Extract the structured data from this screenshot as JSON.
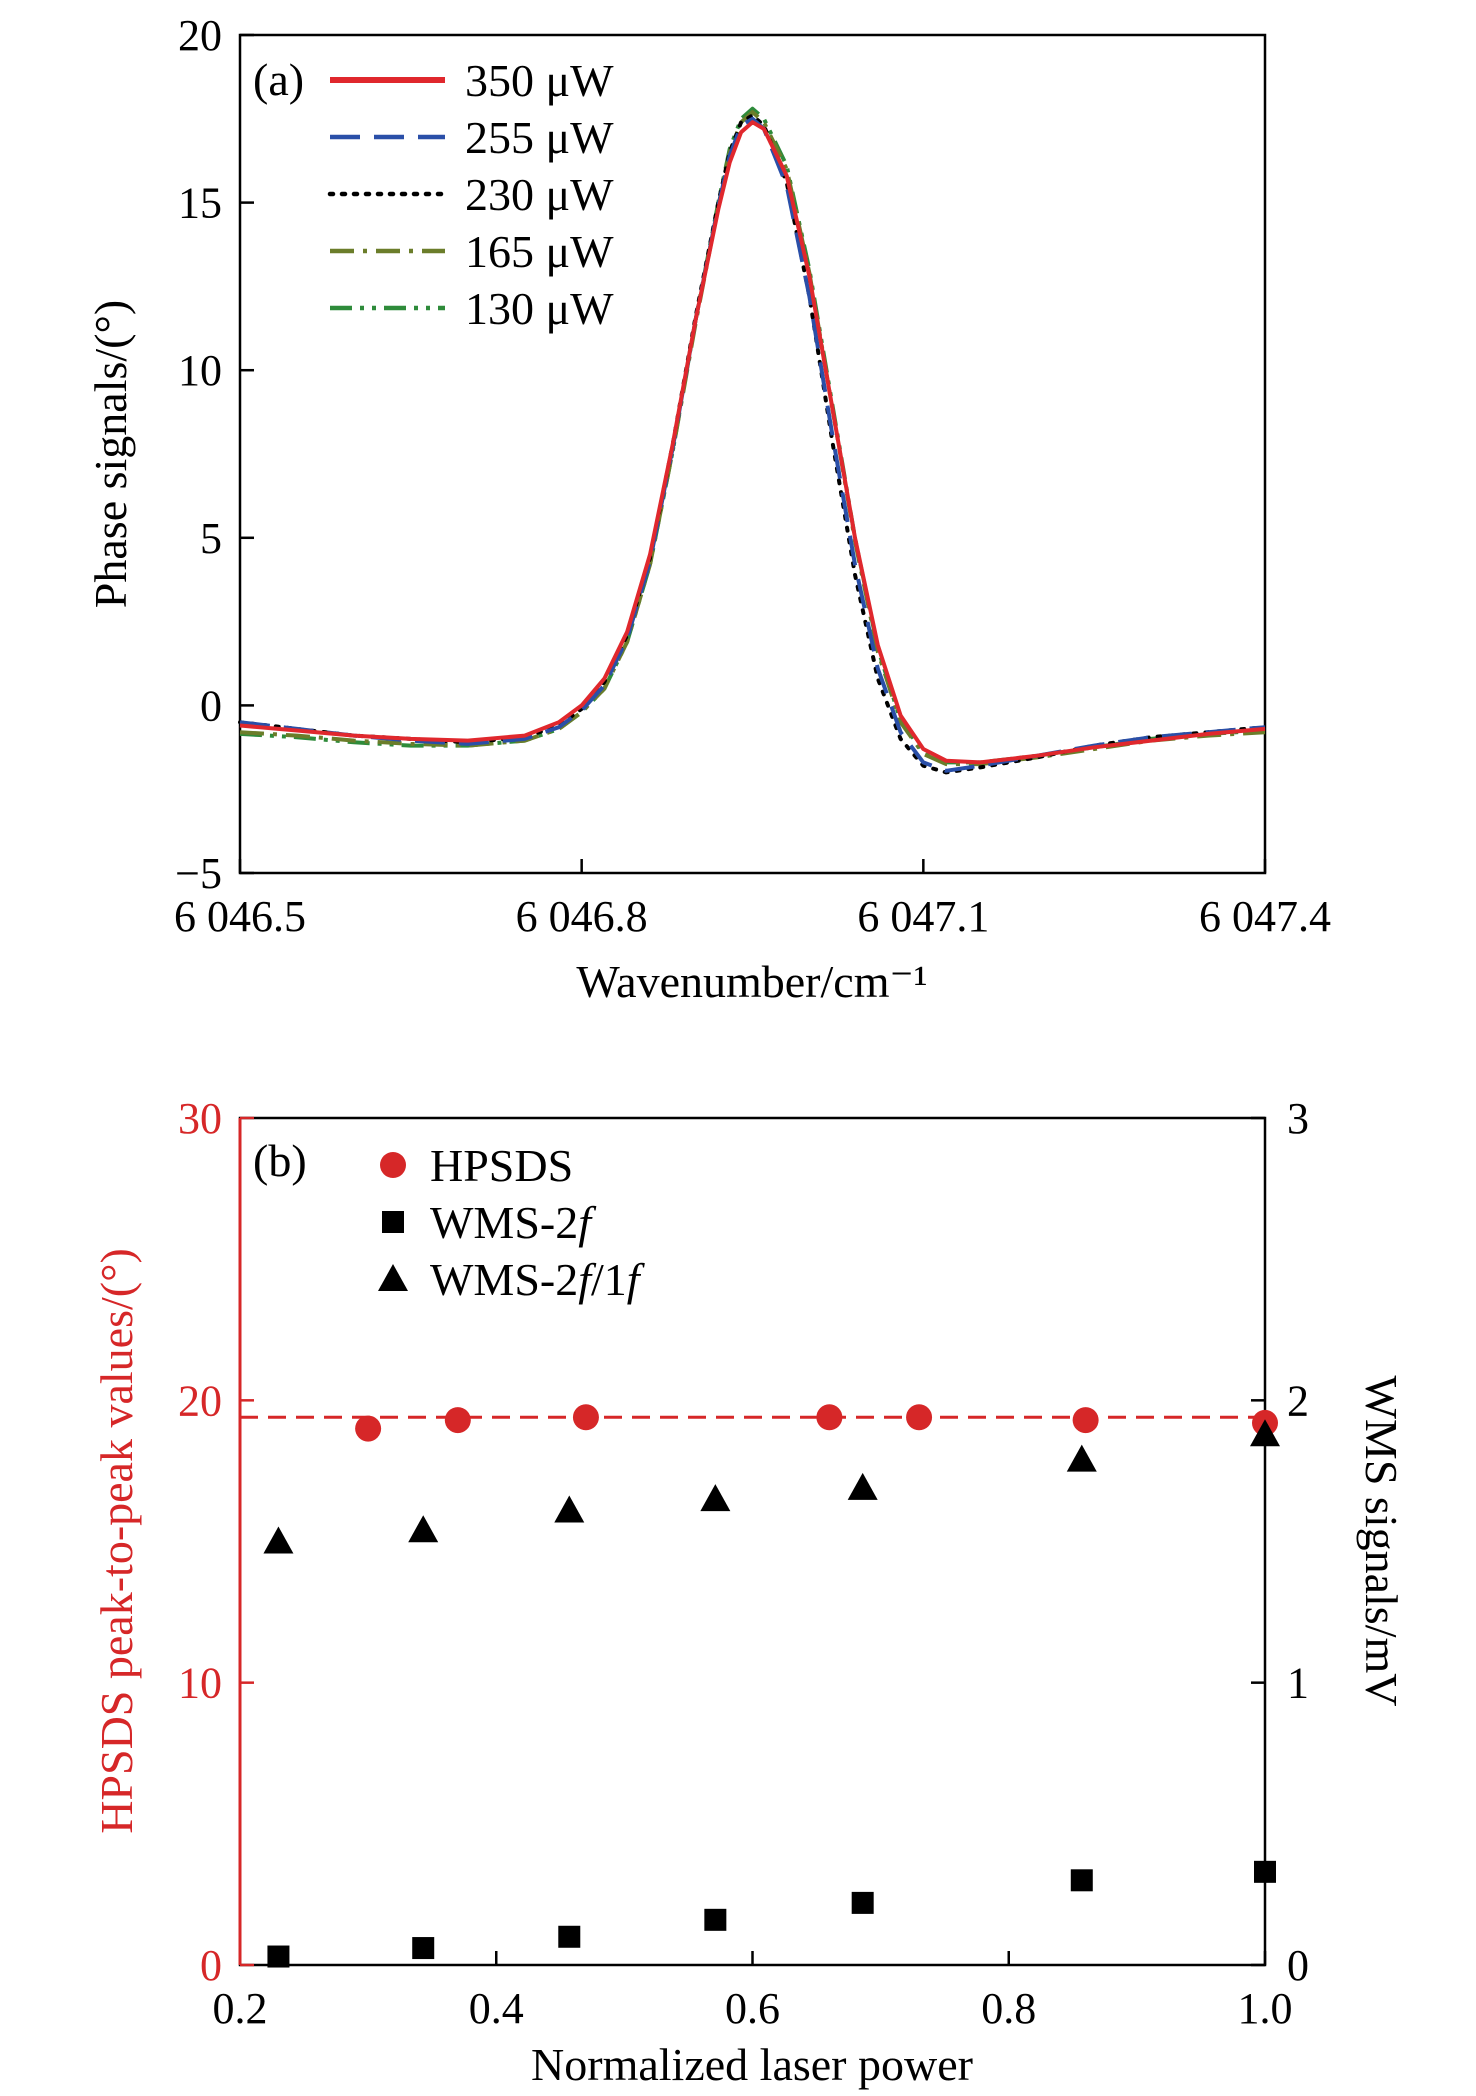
{
  "chart_data": [
    {
      "type": "line",
      "panel_label": "(a)",
      "xlabel": "Wavenumber/cm⁻¹",
      "ylabel": "Phase signals/(°)",
      "xlim": [
        6046.5,
        6047.4
      ],
      "ylim": [
        -5,
        20
      ],
      "x_ticks": [
        6046.5,
        6046.8,
        6047.1,
        6047.4
      ],
      "x_tick_labels": [
        "6 046.5",
        "6 046.8",
        "6 047.1",
        "6 047.4"
      ],
      "y_ticks": [
        -5,
        0,
        5,
        10,
        15,
        20
      ],
      "y_tick_labels": [
        "−5",
        "0",
        "5",
        "10",
        "15",
        "20"
      ],
      "legend_position": "top-left",
      "x": [
        6046.5,
        6046.55,
        6046.6,
        6046.65,
        6046.7,
        6046.75,
        6046.78,
        6046.8,
        6046.82,
        6046.84,
        6046.86,
        6046.88,
        6046.9,
        6046.92,
        6046.93,
        6046.94,
        6046.95,
        6046.96,
        6046.98,
        6047.0,
        6047.02,
        6047.04,
        6047.06,
        6047.08,
        6047.1,
        6047.12,
        6047.15,
        6047.2,
        6047.25,
        6047.3,
        6047.35,
        6047.4
      ],
      "series": [
        {
          "name": "350 μW",
          "color": "#e0282d",
          "dash": "solid",
          "y": [
            -0.6,
            -0.75,
            -0.9,
            -1.0,
            -1.05,
            -0.9,
            -0.5,
            0.0,
            0.8,
            2.2,
            4.5,
            7.8,
            11.5,
            14.8,
            16.2,
            17.1,
            17.4,
            17.2,
            15.8,
            12.8,
            8.9,
            5.0,
            1.8,
            -0.3,
            -1.3,
            -1.65,
            -1.7,
            -1.5,
            -1.25,
            -1.05,
            -0.85,
            -0.7
          ]
        },
        {
          "name": "255 μW",
          "color": "#2a4fa8",
          "dash": "long-dash",
          "y": [
            -0.5,
            -0.7,
            -0.9,
            -1.05,
            -1.15,
            -1.0,
            -0.65,
            -0.15,
            0.6,
            2.0,
            4.3,
            7.7,
            11.5,
            14.9,
            16.4,
            17.3,
            17.5,
            17.2,
            15.5,
            12.2,
            8.1,
            4.2,
            1.1,
            -0.8,
            -1.7,
            -1.95,
            -1.8,
            -1.5,
            -1.2,
            -0.95,
            -0.8,
            -0.65
          ]
        },
        {
          "name": "230 μW",
          "color": "#000000",
          "dash": "dotted",
          "y": [
            -0.5,
            -0.7,
            -0.9,
            -1.0,
            -1.1,
            -0.95,
            -0.6,
            -0.1,
            0.7,
            2.1,
            4.4,
            7.8,
            11.6,
            15.0,
            16.5,
            17.4,
            17.6,
            17.3,
            15.6,
            12.2,
            7.9,
            3.9,
            0.8,
            -1.0,
            -1.8,
            -2.0,
            -1.85,
            -1.55,
            -1.2,
            -0.95,
            -0.8,
            -0.65
          ]
        },
        {
          "name": "165 μW",
          "color": "#6b7d2a",
          "dash": "dash-dot",
          "y": [
            -0.8,
            -0.9,
            -1.05,
            -1.15,
            -1.2,
            -1.05,
            -0.7,
            -0.2,
            0.5,
            1.9,
            4.2,
            7.6,
            11.4,
            14.9,
            16.5,
            17.4,
            17.7,
            17.4,
            16.0,
            12.9,
            8.9,
            4.9,
            1.6,
            -0.5,
            -1.45,
            -1.75,
            -1.75,
            -1.55,
            -1.3,
            -1.05,
            -0.9,
            -0.8
          ]
        },
        {
          "name": "130 μW",
          "color": "#2e8b3a",
          "dash": "dash-dot-dot",
          "y": [
            -0.85,
            -0.95,
            -1.1,
            -1.2,
            -1.2,
            -1.05,
            -0.7,
            -0.2,
            0.5,
            1.9,
            4.2,
            7.6,
            11.5,
            15.0,
            16.6,
            17.5,
            17.8,
            17.5,
            16.1,
            13.0,
            9.0,
            5.0,
            1.7,
            -0.45,
            -1.4,
            -1.7,
            -1.7,
            -1.5,
            -1.25,
            -1.0,
            -0.85,
            -0.75
          ]
        }
      ]
    },
    {
      "type": "scatter",
      "panel_label": "(b)",
      "xlabel": "Normalized laser power",
      "ylabel_left": "HPSDS peak-to-peak values/(°)",
      "ylabel_right": "WMS signals/mV",
      "xlim": [
        0.2,
        1.0
      ],
      "ylim_left": [
        0,
        30
      ],
      "ylim_right": [
        0,
        3
      ],
      "x_ticks": [
        0.2,
        0.4,
        0.6,
        0.8,
        1.0
      ],
      "x_tick_labels": [
        "0.2",
        "0.4",
        "0.6",
        "0.8",
        "1.0"
      ],
      "y_left_ticks": [
        0,
        10,
        20,
        30
      ],
      "y_left_tick_labels": [
        "0",
        "10",
        "20",
        "30"
      ],
      "y_right_ticks": [
        0,
        1,
        2,
        3
      ],
      "y_right_tick_labels": [
        "0",
        "1",
        "2",
        "3"
      ],
      "legend_position": "top-left",
      "reference_line": {
        "axis": "left",
        "y": 19.4,
        "color": "#d62728",
        "style": "dashed"
      },
      "series": [
        {
          "name": "HPSDS",
          "marker": "circle",
          "color": "#d62728",
          "axis": "left",
          "x": [
            0.3,
            0.37,
            0.47,
            0.66,
            0.73,
            0.86,
            1.0
          ],
          "y": [
            19.0,
            19.3,
            19.4,
            19.4,
            19.4,
            19.3,
            19.2
          ]
        },
        {
          "name": "WMS-2f",
          "marker": "square",
          "color": "#000000",
          "axis": "right",
          "x": [
            0.23,
            0.343,
            0.457,
            0.571,
            0.686,
            0.857,
            1.0
          ],
          "y": [
            0.03,
            0.06,
            0.1,
            0.16,
            0.22,
            0.3,
            0.33
          ]
        },
        {
          "name": "WMS-2f/1f",
          "marker": "triangle",
          "color": "#000000",
          "axis": "right",
          "x": [
            0.23,
            0.343,
            0.457,
            0.571,
            0.686,
            0.857,
            1.0
          ],
          "y": [
            1.5,
            1.54,
            1.61,
            1.65,
            1.69,
            1.79,
            1.88
          ]
        }
      ]
    }
  ]
}
